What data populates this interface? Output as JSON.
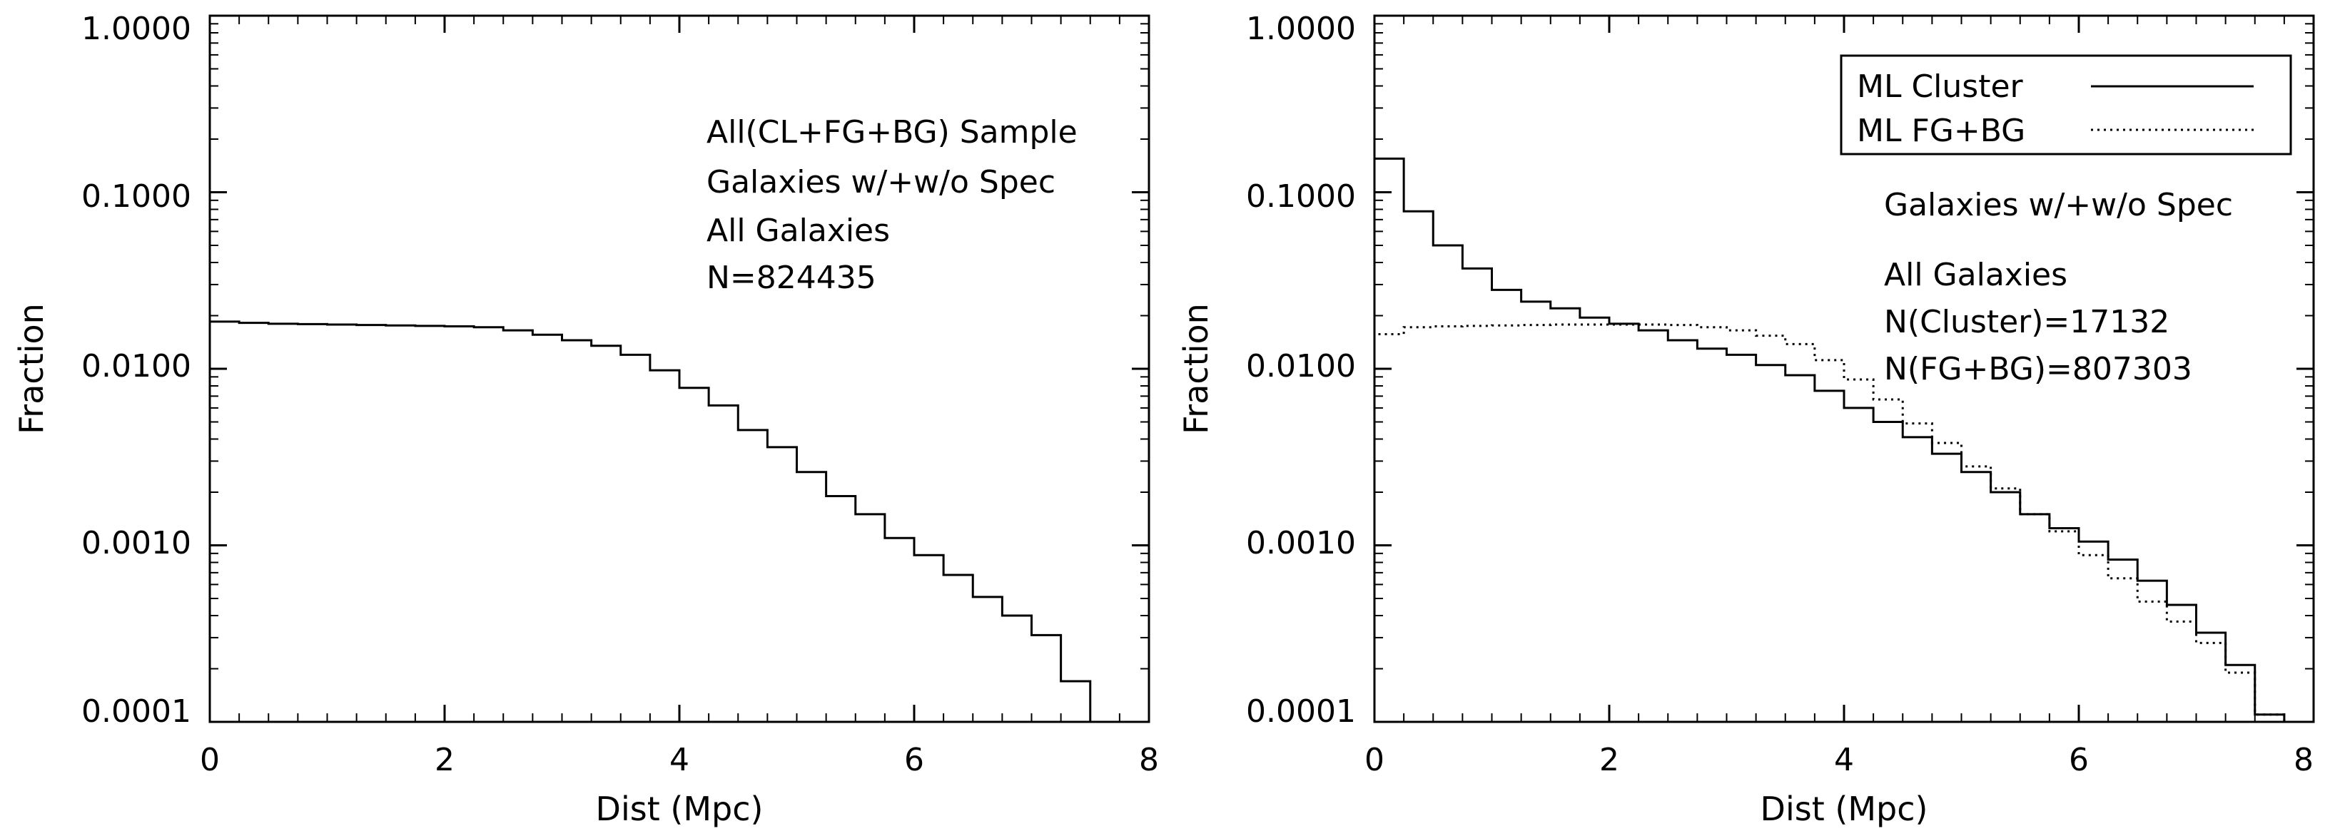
{
  "chart_data": [
    {
      "type": "step",
      "xlabel": "Dist (Mpc)",
      "ylabel": "Fraction",
      "yscale": "log",
      "xlim": [
        0,
        8
      ],
      "ylim": [
        0.0001,
        1.0
      ],
      "xticks": [
        0,
        2,
        4,
        6,
        8
      ],
      "yticks": [
        1.0,
        0.1,
        0.01,
        0.001,
        0.0001
      ],
      "xtick_labels": [
        "0",
        "2",
        "4",
        "6",
        "8"
      ],
      "ytick_labels": [
        "1.0000",
        "0.1000",
        "0.0100",
        "0.0010",
        "0.0001"
      ],
      "bin_width": 0.25,
      "series": [
        {
          "name": "All",
          "style": "solid",
          "values": [
            0.0185,
            0.0182,
            0.018,
            0.0179,
            0.0178,
            0.0177,
            0.0176,
            0.0175,
            0.0174,
            0.0172,
            0.0165,
            0.0156,
            0.0145,
            0.0135,
            0.012,
            0.0098,
            0.0078,
            0.0062,
            0.0045,
            0.0036,
            0.0026,
            0.0019,
            0.0015,
            0.0011,
            0.00088,
            0.00068,
            0.00051,
            0.0004,
            0.00031,
            0.00017,
            0.0001
          ]
        }
      ],
      "annotations": [
        "All(CL+FG+BG) Sample",
        "Galaxies w/+w/o Spec",
        "All Galaxies",
        "N=824435"
      ]
    },
    {
      "type": "step",
      "xlabel": "Dist (Mpc)",
      "ylabel": "Fraction",
      "yscale": "log",
      "xlim": [
        0,
        8
      ],
      "ylim": [
        0.0001,
        1.0
      ],
      "xticks": [
        0,
        2,
        4,
        6,
        8
      ],
      "yticks": [
        1.0,
        0.1,
        0.01,
        0.001,
        0.0001
      ],
      "xtick_labels": [
        "0",
        "2",
        "4",
        "6",
        "8"
      ],
      "ytick_labels": [
        "1.0000",
        "0.1000",
        "0.0100",
        "0.0010",
        "0.0001"
      ],
      "bin_width": 0.25,
      "series": [
        {
          "name": "ML Cluster",
          "style": "solid",
          "values": [
            0.155,
            0.078,
            0.05,
            0.037,
            0.028,
            0.024,
            0.022,
            0.0195,
            0.018,
            0.0165,
            0.0145,
            0.013,
            0.012,
            0.0105,
            0.0092,
            0.0075,
            0.006,
            0.005,
            0.0041,
            0.0033,
            0.0026,
            0.002,
            0.0015,
            0.00125,
            0.00105,
            0.00083,
            0.00063,
            0.00046,
            0.00032,
            0.00021,
            0.00011
          ]
        },
        {
          "name": "ML FG+BG",
          "style": "dotted",
          "values": [
            0.0157,
            0.0172,
            0.0174,
            0.0175,
            0.0176,
            0.0177,
            0.0178,
            0.0178,
            0.0178,
            0.0178,
            0.0177,
            0.0172,
            0.0165,
            0.0154,
            0.0138,
            0.0112,
            0.0087,
            0.0067,
            0.0049,
            0.0038,
            0.0028,
            0.0021,
            0.0015,
            0.0012,
            0.00088,
            0.00065,
            0.00048,
            0.00037,
            0.00028,
            0.00019,
            0.00011
          ]
        }
      ],
      "annotations": [
        "Galaxies w/+w/o Spec",
        "All Galaxies",
        "N(Cluster)=17132",
        "N(FG+BG)=807303"
      ]
    }
  ]
}
